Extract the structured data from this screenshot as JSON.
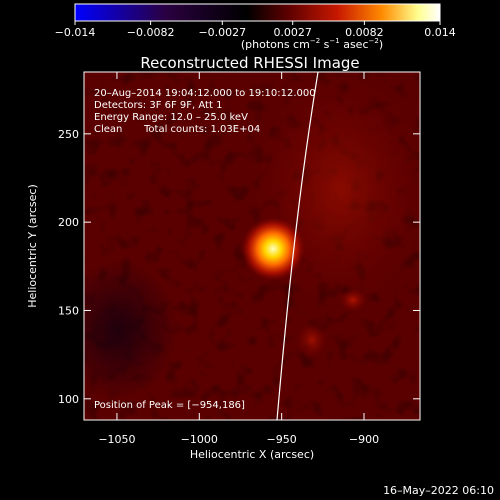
{
  "colorbar": {
    "tick_labels": [
      "−0.014",
      "−0.0082",
      "−0.0027",
      "0.0027",
      "0.0082",
      "0.014"
    ],
    "tick_values": [
      -0.014,
      -0.0082,
      -0.0027,
      0.0027,
      0.0082,
      0.014
    ],
    "range": [
      -0.014,
      0.014
    ],
    "unit_label": {
      "open": "(photons cm",
      "exp1": "−2",
      "mid1": " s",
      "exp2": "−1",
      "mid2": " asec",
      "exp3": "−2",
      "close": ")"
    },
    "colors": [
      "#0000ff",
      "#2a0040",
      "#000000",
      "#5a0000",
      "#c81800",
      "#ff8a00",
      "#ffff90",
      "#ffffff"
    ]
  },
  "image": {
    "title": "Reconstructed RHESSI Image",
    "info_lines": [
      "20–Aug–2014 19:04:12.000 to 19:10:12.000",
      "Detectors: 3F 6F 9F, Att 1",
      "Energy Range: 12.0 – 25.0 keV"
    ],
    "clean_label": "Clean",
    "total_counts": "Total counts: 1.03E+04",
    "peak_label": "Position of Peak = [−954,186]",
    "peak": [
      -954,
      186
    ]
  },
  "axes": {
    "xlabel": "Heliocentric X (arcsec)",
    "ylabel": "Heliocentric Y (arcsec)",
    "xlim": [
      -1070,
      -866
    ],
    "ylim": [
      88,
      285
    ],
    "x_ticks": [
      -1050,
      -1000,
      -950,
      -900
    ],
    "x_tick_labels": [
      "−1050",
      "−1000",
      "−950",
      "−900"
    ],
    "y_ticks": [
      100,
      150,
      200,
      250
    ],
    "y_tick_labels": [
      "100",
      "150",
      "200",
      "250"
    ]
  },
  "footer": {
    "date": "16–May–2022 06:10"
  }
}
